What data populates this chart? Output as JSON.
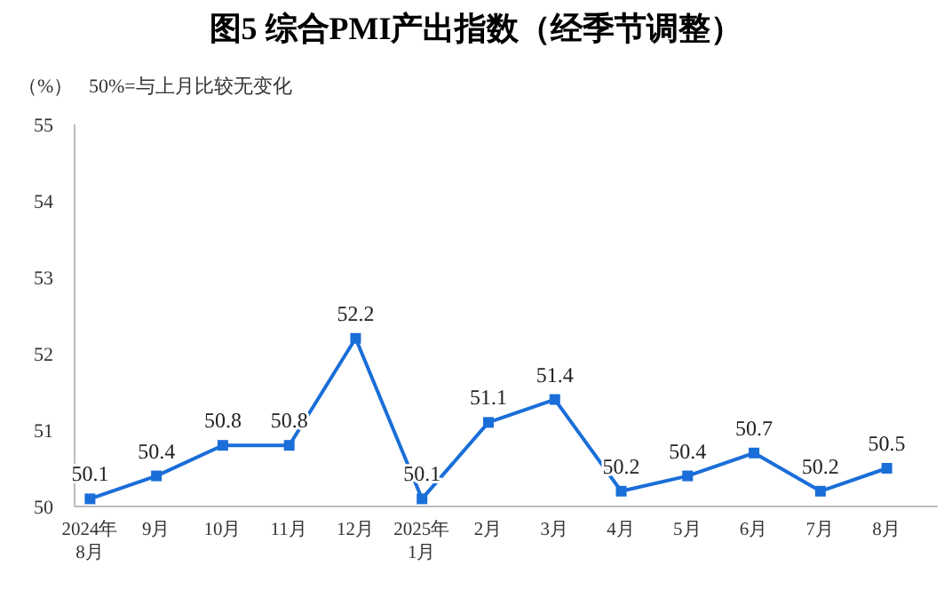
{
  "chart_data": {
    "type": "line",
    "title": "图5  综合PMI产出指数（经季节调整）",
    "ylabel": "（%）",
    "annotations": [
      "50%=与上月比较无变化"
    ],
    "categories": [
      "2024年\n8月",
      "9月",
      "10月",
      "11月",
      "12月",
      "2025年\n1月",
      "2月",
      "3月",
      "4月",
      "5月",
      "6月",
      "7月",
      "8月"
    ],
    "series": [
      {
        "color": "#1a6ed8",
        "values": [
          50.1,
          50.4,
          50.8,
          50.8,
          52.2,
          50.1,
          51.1,
          51.4,
          50.2,
          50.4,
          50.7,
          50.2,
          50.5
        ]
      }
    ],
    "ylim": [
      50,
      55
    ],
    "yticks": [
      50,
      51,
      52,
      53,
      54,
      55
    ],
    "data_labels": true,
    "marker": "square",
    "line_style": "solid",
    "grid": false
  }
}
